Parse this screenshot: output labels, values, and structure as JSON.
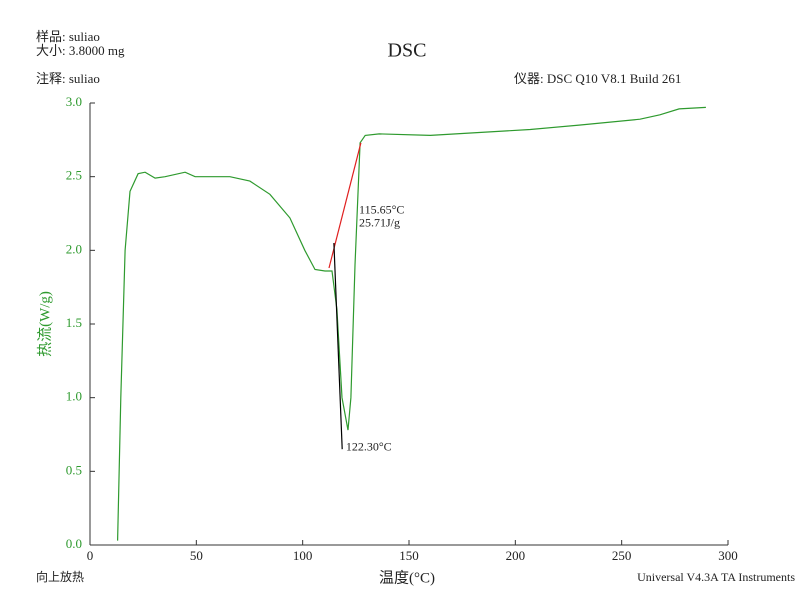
{
  "chart_data": {
    "type": "line",
    "title": "DSC",
    "header": {
      "sample": "样品: suliao",
      "size": "大小:  3.8000 mg",
      "comment": "注释: suliao",
      "instrument": "仪器: DSC Q10 V8.1 Build 261"
    },
    "footer": {
      "left": "向上放热",
      "right": "Universal V4.3A TA Instruments"
    },
    "xlabel": "温度(°C)",
    "ylabel": "热流(W/g)",
    "xlim": [
      0,
      300
    ],
    "xticks": [
      0,
      50,
      100,
      150,
      200,
      250,
      300
    ],
    "ylim": [
      0,
      3
    ],
    "yticks": [
      {
        "value": 0,
        "label": "0.0"
      },
      0.5,
      {
        "value": 1,
        "label": "1.0"
      },
      1.5,
      {
        "value": 2,
        "label": "2.0"
      },
      2.5,
      {
        "value": 3,
        "label": "3.0"
      }
    ],
    "x": [
      13,
      14.5,
      16.5,
      18.8,
      22.6,
      25.9,
      30.6,
      35.3,
      44.7,
      49.4,
      65.8,
      75.2,
      84.6,
      94,
      101,
      105.8,
      110.5,
      113.8,
      116.1,
      118.5,
      121.3,
      122.7,
      124.6,
      127,
      129.4,
      136,
      160,
      183,
      207,
      230,
      258.6,
      268,
      277,
      289.6
    ],
    "series": [
      {
        "name": "热流",
        "color": "#2e9a2e",
        "values": [
          0.03,
          1.0,
          2.0,
          2.4,
          2.52,
          2.53,
          2.49,
          2.5,
          2.53,
          2.5,
          2.5,
          2.47,
          2.38,
          2.22,
          2.0,
          1.87,
          1.86,
          1.86,
          1.6,
          1.0,
          0.78,
          1.0,
          1.9,
          2.73,
          2.78,
          2.79,
          2.78,
          2.8,
          2.82,
          2.85,
          2.89,
          2.92,
          2.96,
          2.97
        ]
      }
    ],
    "integration_line": {
      "x": [
        112.4,
        127.4
      ],
      "y": [
        1.88,
        2.73
      ],
      "color": "#e02020"
    },
    "peak_line": {
      "x": [
        114.7,
        118.6
      ],
      "y": [
        2.05,
        0.65
      ],
      "color": "#000000"
    },
    "annotations": [
      {
        "text": "115.65°C",
        "x": 126.5,
        "y": 2.27
      },
      {
        "text": "25.71J/g",
        "x": 126.5,
        "y": 2.18
      },
      {
        "text": "122.30°C",
        "x": 120.3,
        "y": 0.66
      }
    ]
  }
}
